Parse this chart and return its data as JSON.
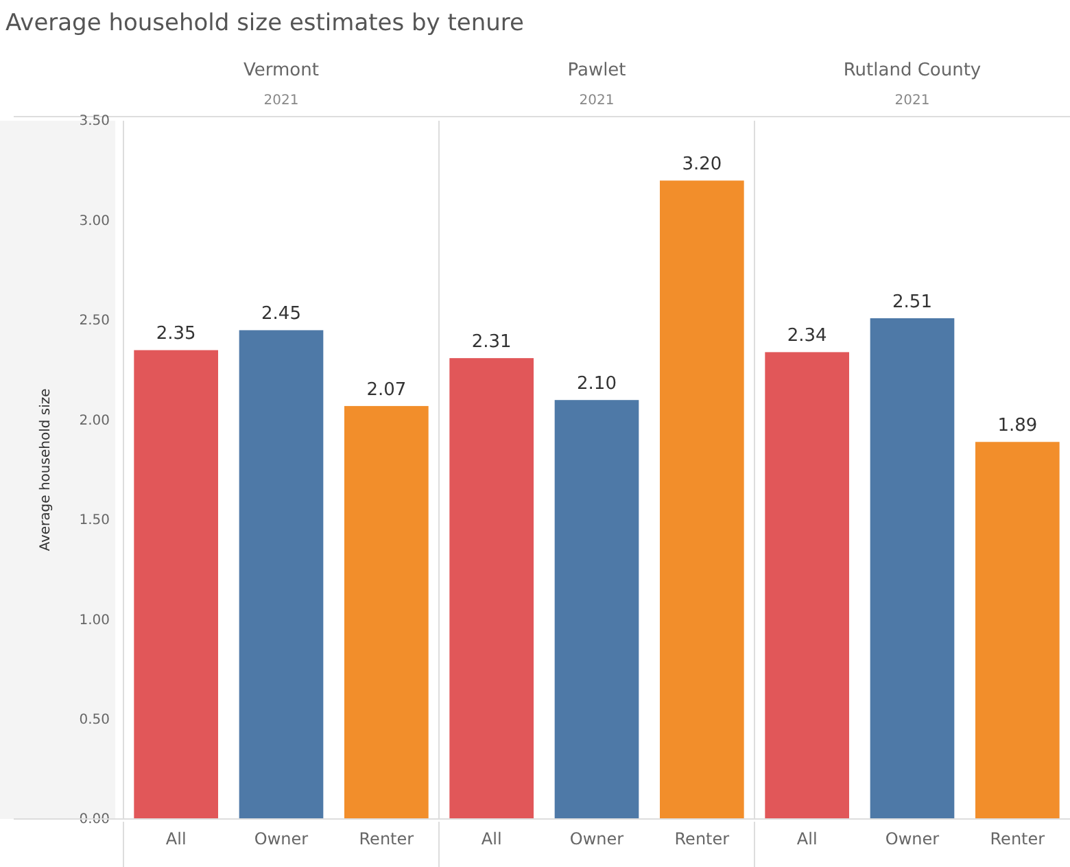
{
  "chart_data": [
    {
      "type": "bar",
      "title": "Vermont",
      "subtitle": "2021",
      "annotations": [
        "Average household size estimates by tenure"
      ],
      "ylabel": "Average household size",
      "categories": [
        "All",
        "Owner",
        "Renter"
      ],
      "values": [
        2.35,
        2.45,
        2.07
      ],
      "colors": [
        "#e15759",
        "#4e79a7",
        "#f28e2b"
      ],
      "ylim": [
        0,
        3.5
      ],
      "yticks": [
        {
          "value": 0,
          "label": "0.00"
        },
        {
          "value": 0.5,
          "label": "0.50"
        },
        {
          "value": 1,
          "label": "1.00"
        },
        {
          "value": 1.5,
          "label": "1.50"
        },
        {
          "value": 2,
          "label": "2.00"
        },
        {
          "value": 2.5,
          "label": "2.50"
        },
        {
          "value": 3,
          "label": "3.00"
        },
        {
          "value": 3.5,
          "label": "3.50"
        }
      ],
      "data_labels": true
    },
    {
      "type": "bar",
      "title": "Pawlet",
      "subtitle": "2021",
      "categories": [
        "All",
        "Owner",
        "Renter"
      ],
      "values": [
        2.31,
        2.1,
        3.2
      ],
      "value_labels": [
        "2.31",
        "2.10",
        "3.20"
      ],
      "colors": [
        "#e15759",
        "#4e79a7",
        "#f28e2b"
      ],
      "ylim": [
        0,
        3.5
      ],
      "tick_labels": "x"
    },
    {
      "type": "bar",
      "title": "Rutland County",
      "subtitle": "2021",
      "categories": [
        "All",
        "Owner",
        "Renter"
      ],
      "values": [
        2.34,
        2.51,
        1.89
      ],
      "colors": [
        "#e15759",
        "#4e79a7",
        "#f28e2b"
      ],
      "ylim": [
        0,
        3.5
      ],
      "tick_labels": "x",
      "data_labels": true
    }
  ]
}
